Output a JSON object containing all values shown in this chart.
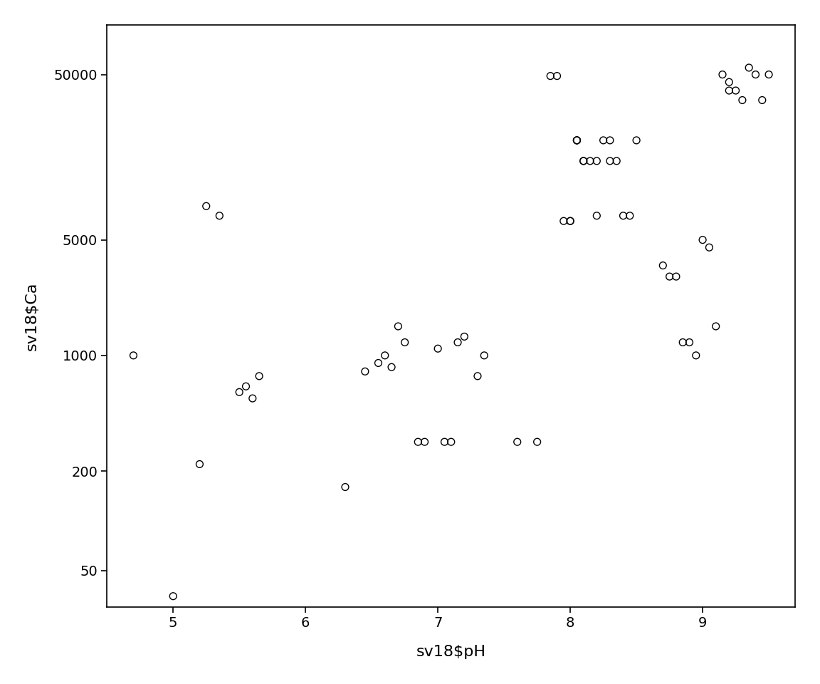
{
  "x": [
    4.7,
    5.0,
    5.2,
    5.25,
    5.35,
    5.5,
    5.55,
    5.6,
    5.65,
    6.3,
    6.45,
    6.55,
    6.6,
    6.65,
    6.7,
    6.75,
    6.85,
    6.9,
    7.0,
    7.05,
    7.1,
    7.15,
    7.2,
    7.3,
    7.35,
    7.6,
    7.75,
    7.85,
    7.9,
    7.95,
    8.0,
    8.0,
    8.05,
    8.05,
    8.05,
    8.1,
    8.1,
    8.15,
    8.2,
    8.2,
    8.25,
    8.3,
    8.3,
    8.35,
    8.4,
    8.45,
    8.5,
    8.7,
    8.75,
    8.8,
    8.85,
    8.9,
    8.95,
    9.0,
    9.05,
    9.1,
    9.15,
    9.2,
    9.2,
    9.25,
    9.3,
    9.35,
    9.4,
    9.45,
    9.5
  ],
  "y": [
    1000,
    35,
    220,
    8000,
    7000,
    600,
    650,
    550,
    750,
    160,
    800,
    900,
    1000,
    850,
    1500,
    1200,
    300,
    300,
    1100,
    300,
    300,
    1200,
    1300,
    750,
    1000,
    300,
    300,
    49000,
    49000,
    6500,
    6500,
    6500,
    20000,
    20000,
    20000,
    15000,
    15000,
    15000,
    15000,
    7000,
    20000,
    15000,
    20000,
    15000,
    7000,
    7000,
    20000,
    3500,
    3000,
    3000,
    1200,
    1200,
    1000,
    5000,
    4500,
    1500,
    50000,
    45000,
    40000,
    40000,
    35000,
    55000,
    50000,
    35000,
    50000
  ],
  "xlabel": "sv18$pH",
  "ylabel": "sv18$Ca",
  "ylim_log": [
    30,
    100000
  ],
  "xlim": [
    4.5,
    9.7
  ],
  "yticks": [
    50,
    200,
    1000,
    5000,
    50000
  ],
  "ytick_labels": [
    "50",
    "200",
    "1000",
    "5000",
    "50000"
  ],
  "xticks": [
    5,
    6,
    7,
    8,
    9
  ],
  "bg_color": "#ffffff",
  "marker_color": "black",
  "marker_size": 50,
  "marker_linewidth": 1.0
}
